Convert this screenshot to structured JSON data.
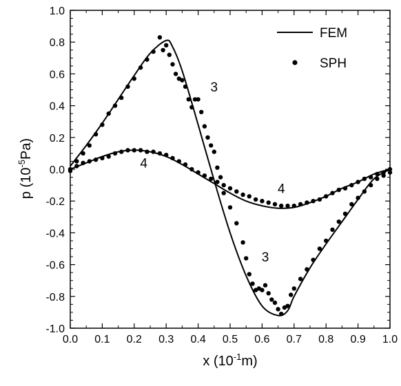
{
  "chart_data": {
    "type": "line",
    "title": "",
    "xlabel": {
      "base": "x (10",
      "sup": "-1",
      "unit": "m)"
    },
    "ylabel": {
      "base": "p (10",
      "sup": "-5",
      "unit": "Pa)"
    },
    "xlim": [
      0.0,
      1.0
    ],
    "ylim": [
      -1.0,
      1.0
    ],
    "xticks": [
      "0.0",
      "0.1",
      "0.2",
      "0.3",
      "0.4",
      "0.5",
      "0.6",
      "0.7",
      "0.8",
      "0.9",
      "1.0"
    ],
    "yticks": [
      "-1.0",
      "-0.8",
      "-0.6",
      "-0.4",
      "-0.2",
      "0.0",
      "0.2",
      "0.4",
      "0.6",
      "0.8",
      "1.0"
    ],
    "grid": false,
    "legend": {
      "position": "top-right",
      "entries": [
        {
          "label": "FEM",
          "style": "line"
        },
        {
          "label": "SPH",
          "style": "marker"
        }
      ]
    },
    "colors": {
      "ink": "#000000"
    },
    "annotations": [
      {
        "text": "3",
        "x": 0.45,
        "y": 0.49
      },
      {
        "text": "4",
        "x": 0.23,
        "y": 0.01
      },
      {
        "text": "4",
        "x": 0.66,
        "y": -0.15
      },
      {
        "text": "3",
        "x": 0.61,
        "y": -0.58
      }
    ],
    "series": [
      {
        "legend": "FEM",
        "kind": "line",
        "x": [
          0.0,
          0.05,
          0.1,
          0.15,
          0.2,
          0.25,
          0.3,
          0.32,
          0.35,
          0.4,
          0.45,
          0.5,
          0.55,
          0.6,
          0.65,
          0.68,
          0.7,
          0.75,
          0.8,
          0.85,
          0.9,
          0.95,
          1.0
        ],
        "y": [
          0.02,
          0.15,
          0.29,
          0.44,
          0.59,
          0.73,
          0.81,
          0.77,
          0.62,
          0.28,
          -0.07,
          -0.4,
          -0.67,
          -0.86,
          -0.92,
          -0.89,
          -0.8,
          -0.62,
          -0.47,
          -0.33,
          -0.19,
          -0.06,
          0.0
        ]
      },
      {
        "legend": "SPH",
        "kind": "scatter",
        "x": [
          0.0,
          0.02,
          0.04,
          0.06,
          0.08,
          0.1,
          0.12,
          0.14,
          0.16,
          0.18,
          0.2,
          0.22,
          0.24,
          0.26,
          0.28,
          0.29,
          0.3,
          0.31,
          0.32,
          0.33,
          0.34,
          0.35,
          0.36,
          0.37,
          0.38,
          0.39,
          0.4,
          0.41,
          0.42,
          0.43,
          0.44,
          0.45,
          0.46,
          0.47,
          0.48,
          0.5,
          0.52,
          0.54,
          0.55,
          0.56,
          0.57,
          0.58,
          0.59,
          0.6,
          0.61,
          0.62,
          0.63,
          0.64,
          0.65,
          0.66,
          0.67,
          0.68,
          0.69,
          0.7,
          0.72,
          0.74,
          0.76,
          0.78,
          0.8,
          0.82,
          0.84,
          0.86,
          0.88,
          0.9,
          0.92,
          0.94,
          0.96,
          0.98,
          1.0
        ],
        "y": [
          0.0,
          0.05,
          0.1,
          0.15,
          0.22,
          0.28,
          0.35,
          0.4,
          0.45,
          0.52,
          0.57,
          0.64,
          0.69,
          0.74,
          0.83,
          0.75,
          0.78,
          0.72,
          0.66,
          0.6,
          0.57,
          0.56,
          0.52,
          0.44,
          0.39,
          0.44,
          0.44,
          0.36,
          0.27,
          0.2,
          0.15,
          0.11,
          0.01,
          -0.05,
          -0.15,
          -0.24,
          -0.34,
          -0.46,
          -0.56,
          -0.66,
          -0.72,
          -0.76,
          -0.75,
          -0.76,
          -0.73,
          -0.78,
          -0.82,
          -0.84,
          -0.88,
          -0.91,
          -0.87,
          -0.86,
          -0.79,
          -0.75,
          -0.69,
          -0.63,
          -0.57,
          -0.5,
          -0.45,
          -0.38,
          -0.33,
          -0.28,
          -0.22,
          -0.18,
          -0.14,
          -0.1,
          -0.06,
          -0.04,
          -0.02
        ]
      },
      {
        "legend": "FEM",
        "kind": "line",
        "x": [
          0.0,
          0.05,
          0.1,
          0.15,
          0.2,
          0.25,
          0.3,
          0.35,
          0.4,
          0.45,
          0.5,
          0.55,
          0.6,
          0.65,
          0.7,
          0.75,
          0.8,
          0.85,
          0.9,
          0.95,
          1.0
        ],
        "y": [
          0.0,
          0.04,
          0.08,
          0.11,
          0.12,
          0.11,
          0.08,
          0.03,
          -0.03,
          -0.09,
          -0.15,
          -0.2,
          -0.23,
          -0.245,
          -0.24,
          -0.21,
          -0.17,
          -0.12,
          -0.08,
          -0.03,
          0.0
        ]
      },
      {
        "legend": "SPH",
        "kind": "scatter",
        "x": [
          0.0,
          0.02,
          0.04,
          0.06,
          0.08,
          0.1,
          0.12,
          0.14,
          0.16,
          0.18,
          0.2,
          0.22,
          0.24,
          0.26,
          0.28,
          0.3,
          0.32,
          0.34,
          0.36,
          0.38,
          0.4,
          0.42,
          0.44,
          0.46,
          0.48,
          0.5,
          0.52,
          0.54,
          0.56,
          0.58,
          0.6,
          0.62,
          0.64,
          0.66,
          0.68,
          0.7,
          0.72,
          0.74,
          0.76,
          0.78,
          0.8,
          0.82,
          0.84,
          0.86,
          0.88,
          0.9,
          0.92,
          0.94,
          0.96,
          0.98,
          1.0
        ],
        "y": [
          -0.01,
          0.02,
          0.04,
          0.05,
          0.06,
          0.07,
          0.08,
          0.1,
          0.11,
          0.12,
          0.12,
          0.12,
          0.11,
          0.11,
          0.1,
          0.09,
          0.07,
          0.05,
          0.03,
          0.0,
          -0.02,
          -0.04,
          -0.06,
          -0.08,
          -0.1,
          -0.12,
          -0.14,
          -0.16,
          -0.17,
          -0.19,
          -0.2,
          -0.21,
          -0.22,
          -0.23,
          -0.23,
          -0.23,
          -0.22,
          -0.21,
          -0.2,
          -0.19,
          -0.17,
          -0.15,
          -0.13,
          -0.12,
          -0.1,
          -0.08,
          -0.06,
          -0.05,
          -0.03,
          -0.02,
          0.0
        ]
      }
    ]
  }
}
